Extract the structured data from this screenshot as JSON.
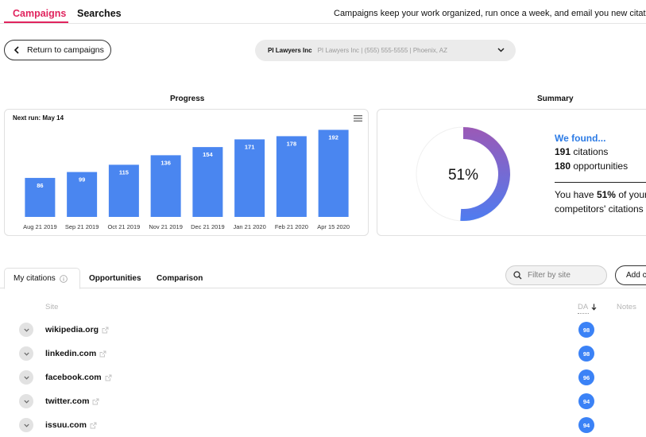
{
  "nav": {
    "tabs": [
      "Campaigns",
      "Searches"
    ],
    "info": "Campaigns keep your work organized, run once a week, and email you new citations an"
  },
  "return_label": "Return to campaigns",
  "business": {
    "name": "PI Lawyers Inc",
    "detail": "PI Lawyers Inc | (555) 555-5555 | Phoenix, AZ"
  },
  "progress": {
    "title": "Progress",
    "next_run": "Next run: May 14"
  },
  "chart_data": {
    "type": "bar",
    "categories": [
      "Aug 21 2019",
      "Sep 21 2019",
      "Oct 21 2019",
      "Nov 21 2019",
      "Dec 21 2019",
      "Jan 21 2020",
      "Feb 21 2020",
      "Apr 15 2020"
    ],
    "values": [
      86,
      99,
      115,
      136,
      154,
      171,
      178,
      192
    ],
    "ylim": [
      0,
      205
    ],
    "color": "#4a86f0",
    "grid": false,
    "legend": false
  },
  "summary": {
    "title": "Summary",
    "percent": "51%",
    "percent_value": 0.51,
    "found_title": "We found...",
    "citations_count": "191",
    "citations_word": " citations",
    "opportunities_count": "180",
    "opportunities_word": " opportunities",
    "share_prefix": "You have ",
    "share_pct": "51%",
    "share_suffix": " of your",
    "share_line2": "competitors' citations",
    "gradient": [
      "#9b59b6",
      "#4f7cf0"
    ]
  },
  "tabs": {
    "my_citations": "My citations",
    "opportunities": "Opportunities",
    "comparison": "Comparison"
  },
  "filter_placeholder": "Filter by site",
  "add_label": "Add c",
  "table": {
    "headers": {
      "site": "Site",
      "da": "DA",
      "notes": "Notes"
    },
    "rows": [
      {
        "site": "wikipedia.org",
        "da": "98"
      },
      {
        "site": "linkedin.com",
        "da": "98"
      },
      {
        "site": "facebook.com",
        "da": "96"
      },
      {
        "site": "twitter.com",
        "da": "94"
      },
      {
        "site": "issuu.com",
        "da": "94"
      }
    ]
  }
}
